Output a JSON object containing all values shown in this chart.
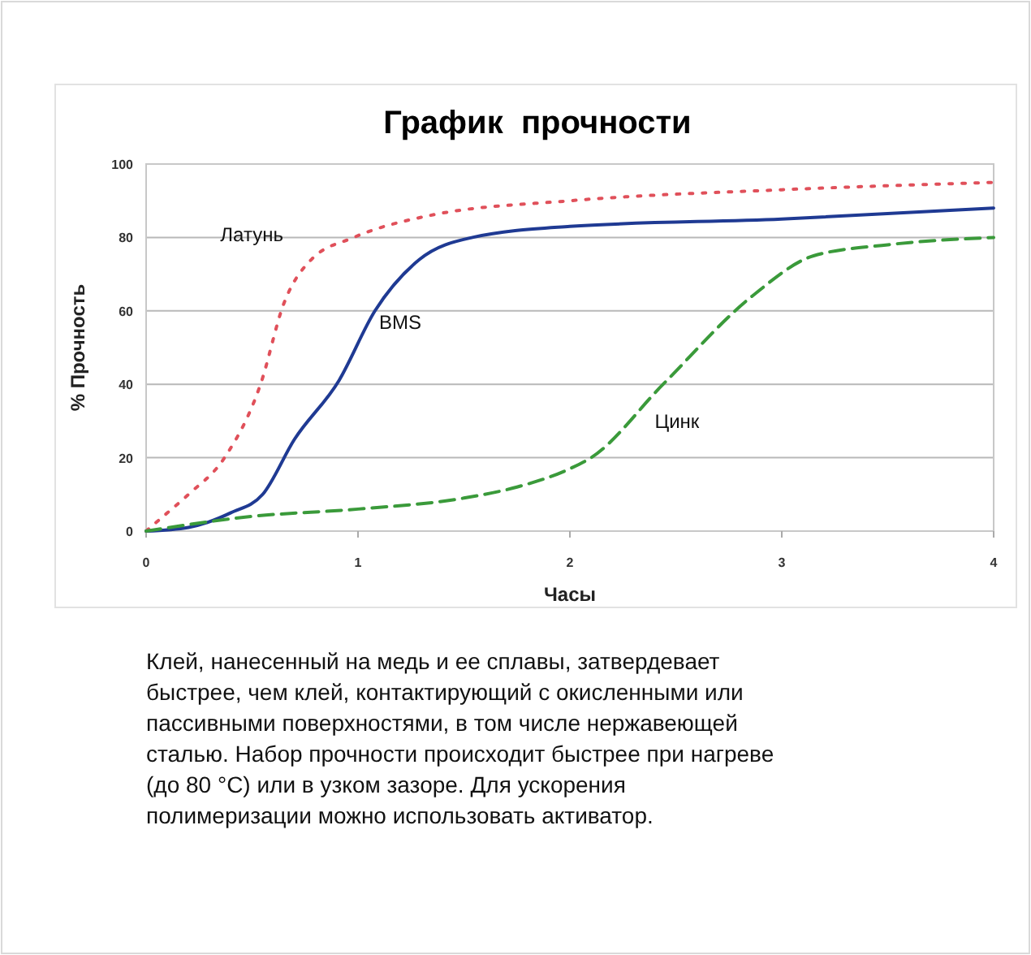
{
  "chart_data": {
    "type": "line",
    "title": "График  прочности",
    "xlabel": "Часы",
    "ylabel": "% Прочность",
    "xlim": [
      0,
      4
    ],
    "xticks": [
      0,
      1,
      2,
      3,
      4
    ],
    "ylim": [
      0,
      100
    ],
    "yticks": [
      0,
      20,
      40,
      60,
      80,
      100
    ],
    "grid": "y",
    "series": [
      {
        "name": "Латунь",
        "color": "#e0505a",
        "line_style": "dotted",
        "x": [
          0,
          0.06,
          0.2,
          0.37,
          0.54,
          0.65,
          0.78,
          0.98,
          1.34,
          2,
          3,
          4
        ],
        "values": [
          0,
          3,
          10,
          20,
          40,
          62,
          74,
          80,
          86,
          90,
          93,
          95
        ]
      },
      {
        "name": "BMS",
        "color": "#1f3a93",
        "line_style": "solid",
        "x": [
          0,
          0.2,
          0.4,
          0.55,
          0.7,
          0.91,
          1.08,
          1.29,
          1.54,
          2,
          3,
          4
        ],
        "values": [
          0,
          1,
          5,
          10,
          25,
          41,
          60,
          74,
          80,
          83,
          85,
          88
        ]
      },
      {
        "name": "Цинк",
        "color": "#3a9a3a",
        "line_style": "dashed",
        "x": [
          0,
          0.5,
          1,
          1.5,
          1.75,
          2,
          2.1,
          2.44,
          2.86,
          3.15,
          3.5,
          4
        ],
        "values": [
          0,
          4,
          6,
          9,
          12,
          17,
          20,
          40,
          64,
          75,
          78,
          80
        ]
      }
    ],
    "annotations": [
      "Клей, нанесенный на медь и ее сплавы, затвердевает быстрее, чем клей, контактирующий с окисленными или пассивными поверхностями, в том числе нержавеющей сталью. Набор прочности происходит быстрее при нагреве (до 80 °C) или в узком зазоре. Для ускорения полимеризации можно использовать активатор."
    ]
  }
}
